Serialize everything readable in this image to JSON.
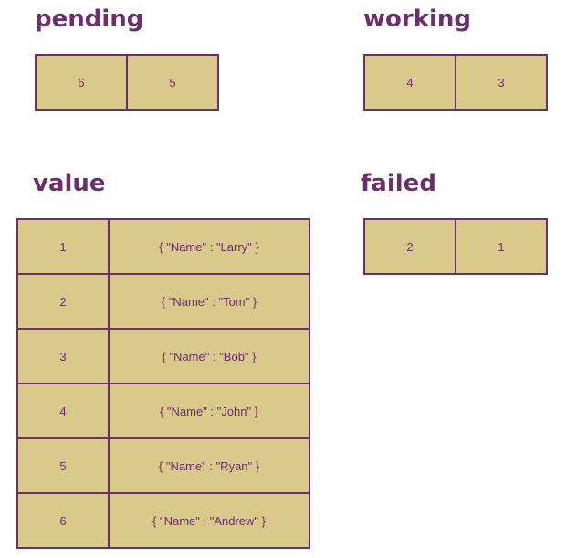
{
  "pending": {
    "title": "pending",
    "items": [
      "6",
      "5"
    ]
  },
  "working": {
    "title": "working",
    "items": [
      "4",
      "3"
    ]
  },
  "value": {
    "title": "value",
    "rows": [
      {
        "key": "1",
        "val": "{ \"Name\" : \"Larry\" }"
      },
      {
        "key": "2",
        "val": "{ \"Name\" : \"Tom\" }"
      },
      {
        "key": "3",
        "val": "{ \"Name\" : \"Bob\" }"
      },
      {
        "key": "4",
        "val": "{ \"Name\" : \"John\" }"
      },
      {
        "key": "5",
        "val": "{ \"Name\" : \"Ryan\" }"
      },
      {
        "key": "6",
        "val": "{ \"Name\" : \"Andrew\" }"
      }
    ]
  },
  "failed": {
    "title": "failed",
    "items": [
      "2",
      "1"
    ]
  },
  "colors": {
    "accent": "#6b2f6b",
    "cell_fill": "#d9c98b",
    "background": "#ffffff"
  }
}
